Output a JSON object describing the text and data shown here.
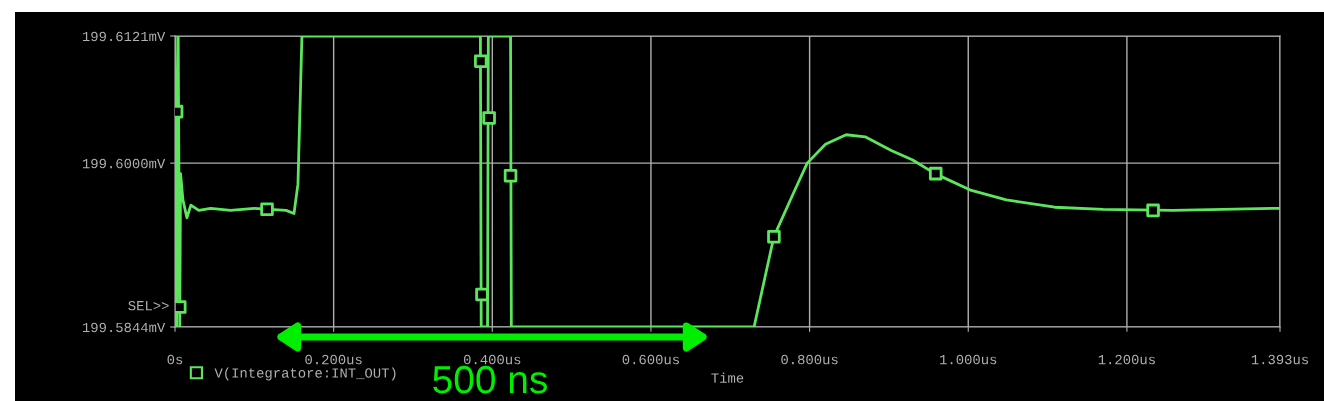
{
  "chart_data": {
    "type": "line",
    "xlabel": "Time",
    "xlim": [
      0,
      1.393
    ],
    "xticks": [
      {
        "value": 0,
        "label": "0s"
      },
      {
        "value": 0.2,
        "label": "0.200us"
      },
      {
        "value": 0.4,
        "label": "0.400us"
      },
      {
        "value": 0.6,
        "label": "0.600us"
      },
      {
        "value": 0.8,
        "label": "0.800us"
      },
      {
        "value": 1.0,
        "label": "1.000us"
      },
      {
        "value": 1.2,
        "label": "1.200us"
      },
      {
        "value": 1.393,
        "label": "1.393us"
      }
    ],
    "ylim": [
      199.5844,
      199.6121
    ],
    "yticks": [
      {
        "value": 199.5844,
        "label": "199.5844mV"
      },
      {
        "value": 199.6,
        "label": "199.6000mV"
      },
      {
        "value": 199.6121,
        "label": "199.6121mV"
      }
    ],
    "grid": true,
    "legend": "bottom left",
    "line_style": "solid",
    "series": [
      {
        "color": "#5de65d",
        "x": [
          0.0,
          0.002,
          0.004,
          0.006,
          0.007,
          0.01,
          0.015,
          0.02,
          0.03,
          0.045,
          0.07,
          0.1,
          0.14,
          0.15,
          0.155,
          0.16,
          0.385,
          0.386,
          0.394,
          0.395,
          0.423,
          0.424,
          0.73,
          0.755,
          0.78,
          0.797,
          0.82,
          0.846,
          0.87,
          0.903,
          0.93,
          0.958,
          1.004,
          1.048,
          1.109,
          1.17,
          1.258,
          1.393
        ],
        "values": [
          199.6121,
          199.5844,
          199.6121,
          199.5844,
          199.599,
          199.5965,
          199.5948,
          199.596,
          199.5955,
          199.5957,
          199.5955,
          199.5957,
          199.5955,
          199.5952,
          199.598,
          199.6121,
          199.6121,
          199.5844,
          199.5844,
          199.6121,
          199.6121,
          199.5844,
          199.5844,
          199.593,
          199.5972,
          199.6,
          199.6018,
          199.6027,
          199.6025,
          199.6012,
          199.6003,
          199.599,
          199.5974,
          199.5965,
          199.5958,
          199.5956,
          199.5955,
          199.5957
        ]
      },
      {
        "type": "scatter",
        "name": "V(Integratore:INT_OUT)",
        "color": "#5de65d",
        "marker": "square",
        "x": [
          0.002,
          0.006,
          0.116,
          0.3855,
          0.387,
          0.396,
          0.423,
          0.755,
          0.959,
          1.233
        ],
        "values": [
          199.6049,
          199.5863,
          199.5956,
          199.6097,
          199.5875,
          199.6043,
          199.5988,
          199.593,
          199.599,
          199.5955
        ]
      }
    ],
    "annotations": [
      "SEL>>",
      "500 ns"
    ]
  }
}
